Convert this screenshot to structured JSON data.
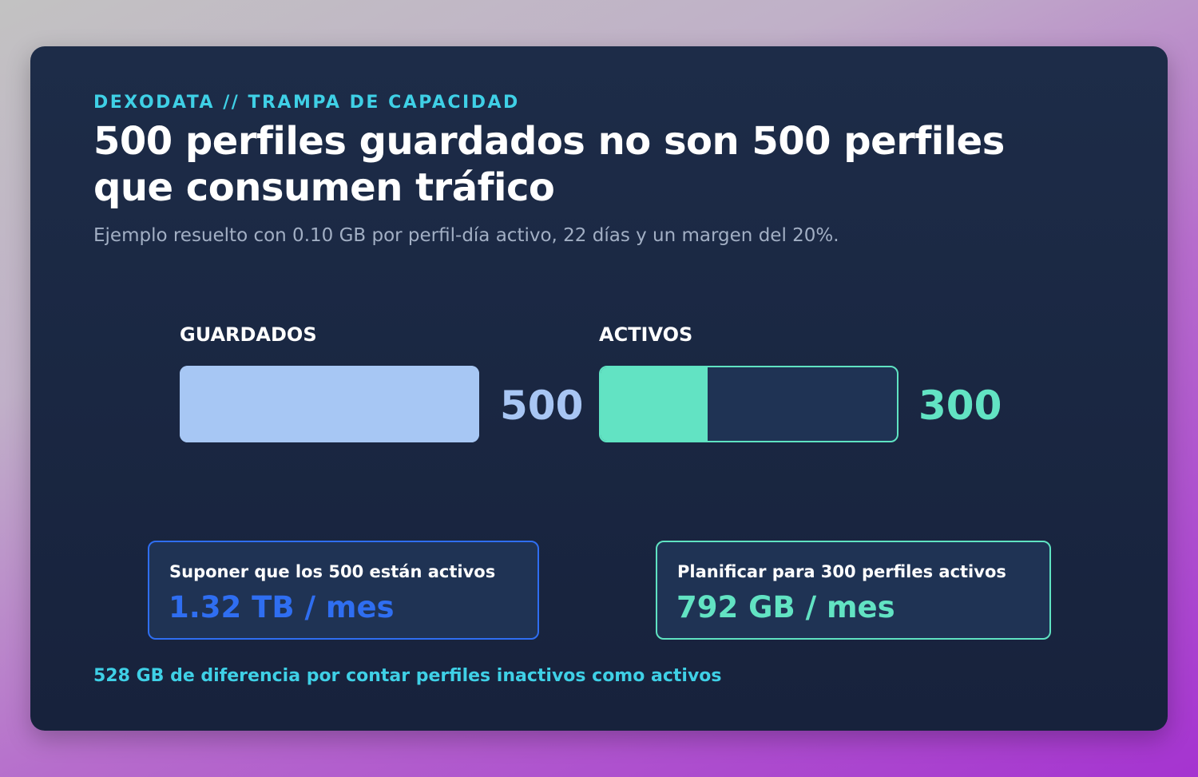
{
  "header": {
    "eyebrow": "DEXODATA // TRAMPA DE CAPACIDAD",
    "title": "500 perfiles guardados no son 500 perfiles que consumen tráfico",
    "subtitle": "Ejemplo resuelto con 0.10 GB por perfil-día activo, 22 días y un margen del 20%."
  },
  "chart_data": {
    "type": "bar",
    "orientation": "horizontal",
    "categories": [
      "GUARDADOS",
      "ACTIVOS"
    ],
    "values": [
      500,
      300
    ],
    "value_labels": [
      "500",
      "300"
    ],
    "xlim": [
      0,
      500
    ],
    "colors": [
      "#a7c7f4",
      "#62e3c3"
    ]
  },
  "comparison": {
    "assume": {
      "label": "Suponer que los 500 están activos",
      "value": "1.32 TB / mes",
      "color": "#2f6ef1"
    },
    "plan": {
      "label": "Planificar para 300 perfiles activos",
      "value": "792 GB / mes",
      "color": "#62e3c3"
    }
  },
  "footer": {
    "note": "528 GB de diferencia por contar perfiles inactivos como activos"
  }
}
